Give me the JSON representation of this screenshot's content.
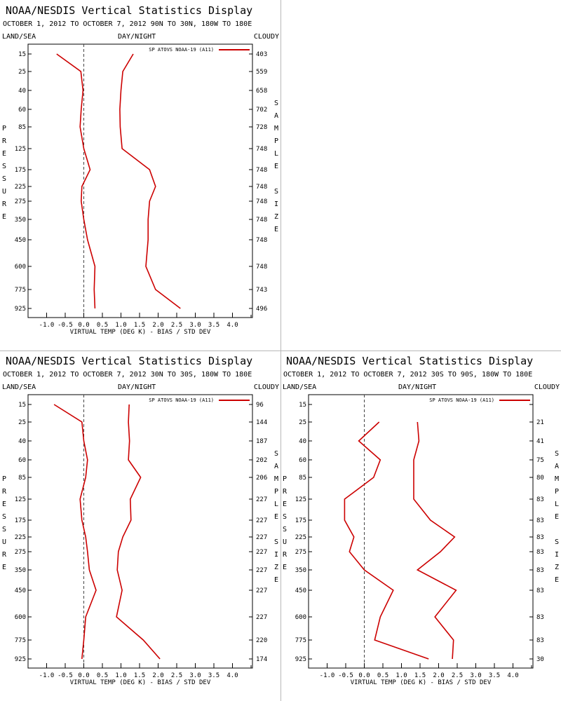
{
  "chart_data": [
    {
      "type": "line",
      "title": "NOAA/NESDIS Vertical Statistics Display",
      "subtitle": "OCTOBER 1, 2012 TO OCTOBER 7, 2012  90N TO 30N, 180W TO 180E",
      "header_left": "LAND/SEA",
      "header_center": "DAY/NIGHT",
      "header_right": "CLOUDY",
      "ylabel": "PRESSURE",
      "y2label": "SAMPLE SIZE",
      "xlabel": "VIRTUAL TEMP (DEG K) - BIAS / STD DEV",
      "xlim": [
        -1.5,
        4.5
      ],
      "xticks": [
        "-1.0",
        "-0.5",
        "0.0",
        "0.5",
        "1.0",
        "1.5",
        "2.0",
        "2.5",
        "3.0",
        "3.5",
        "4.0"
      ],
      "levels": [
        "15",
        "25",
        "40",
        "60",
        "85",
        "125",
        "175",
        "225",
        "275",
        "350",
        "450",
        "600",
        "775",
        "925"
      ],
      "legend": "SP ATOVS NOAA-19 (A11)",
      "legend_position": "top-right",
      "line_color": "#cc0000",
      "sample_size": [
        "403",
        "559",
        "658",
        "702",
        "728",
        "748",
        "748",
        "748",
        "748",
        "748",
        "748",
        "748",
        "743",
        "496"
      ],
      "series": [
        {
          "values": [
            -0.73,
            -0.08,
            -0.02,
            -0.07,
            -0.1,
            0.0,
            0.17,
            -0.05,
            -0.07,
            0.0,
            0.1,
            0.3,
            0.28,
            0.3
          ]
        },
        {
          "values": [
            1.33,
            1.05,
            1.0,
            0.97,
            0.98,
            1.03,
            1.77,
            1.93,
            1.77,
            1.73,
            1.73,
            1.67,
            1.93,
            2.6
          ]
        }
      ]
    },
    {
      "type": "line",
      "title": "NOAA/NESDIS Vertical Statistics Display",
      "subtitle": "OCTOBER 1, 2012 TO OCTOBER 7, 2012  30N TO 30S, 180W TO 180E",
      "header_left": "LAND/SEA",
      "header_center": "DAY/NIGHT",
      "header_right": "CLOUDY",
      "ylabel": "PRESSURE",
      "y2label": "SAMPLE SIZE",
      "xlabel": "VIRTUAL TEMP (DEG K) - BIAS / STD DEV",
      "xlim": [
        -1.5,
        4.5
      ],
      "xticks": [
        "-1.0",
        "-0.5",
        "0.0",
        "0.5",
        "1.0",
        "1.5",
        "2.0",
        "2.5",
        "3.0",
        "3.5",
        "4.0"
      ],
      "levels": [
        "15",
        "25",
        "40",
        "60",
        "85",
        "125",
        "175",
        "225",
        "275",
        "350",
        "450",
        "600",
        "775",
        "925"
      ],
      "legend": "SP ATOVS NOAA-19 (A11)",
      "legend_position": "top-right",
      "line_color": "#cc0000",
      "sample_size": [
        "96",
        "144",
        "187",
        "202",
        "206",
        "227",
        "227",
        "227",
        "227",
        "227",
        "227",
        "227",
        "220",
        "174"
      ],
      "series": [
        {
          "values": [
            -0.8,
            -0.05,
            0.0,
            0.1,
            0.05,
            -0.1,
            -0.05,
            0.05,
            0.1,
            0.15,
            0.33,
            0.05,
            0.0,
            -0.05
          ]
        },
        {
          "values": [
            1.22,
            1.2,
            1.23,
            1.2,
            1.53,
            1.25,
            1.27,
            1.05,
            0.93,
            0.9,
            1.03,
            0.88,
            1.6,
            2.05
          ]
        }
      ]
    },
    {
      "type": "line",
      "title": "NOAA/NESDIS Vertical Statistics Display",
      "subtitle": "OCTOBER 1, 2012 TO OCTOBER 7, 2012  30S TO 90S, 180W TO 180E",
      "header_left": "LAND/SEA",
      "header_center": "DAY/NIGHT",
      "header_right": "CLOUDY",
      "ylabel": "PRESSURE",
      "y2label": "SAMPLE SIZE",
      "xlabel": "VIRTUAL TEMP (DEG K) - BIAS / STD DEV",
      "xlim": [
        -1.5,
        4.5
      ],
      "xticks": [
        "-1.0",
        "-0.5",
        "0.0",
        "0.5",
        "1.0",
        "1.5",
        "2.0",
        "2.5",
        "3.0",
        "3.5",
        "4.0"
      ],
      "levels": [
        "15",
        "25",
        "40",
        "60",
        "85",
        "125",
        "175",
        "225",
        "275",
        "350",
        "450",
        "600",
        "775",
        "925"
      ],
      "legend": "SP ATOVS NOAA-19 (A11)",
      "legend_position": "top-right",
      "line_color": "#cc0000",
      "sample_size": [
        "",
        "21",
        "41",
        "75",
        "80",
        "83",
        "83",
        "83",
        "83",
        "83",
        "83",
        "83",
        "83",
        "30"
      ],
      "series": [
        {
          "values": [
            null,
            0.4,
            -0.15,
            0.43,
            0.25,
            -0.53,
            -0.53,
            -0.28,
            -0.4,
            0.0,
            0.78,
            0.43,
            0.28,
            1.73
          ]
        },
        {
          "values": [
            null,
            1.43,
            1.47,
            1.33,
            1.33,
            1.33,
            1.78,
            2.43,
            2.05,
            1.43,
            2.47,
            1.9,
            2.4,
            2.37
          ]
        }
      ]
    }
  ]
}
